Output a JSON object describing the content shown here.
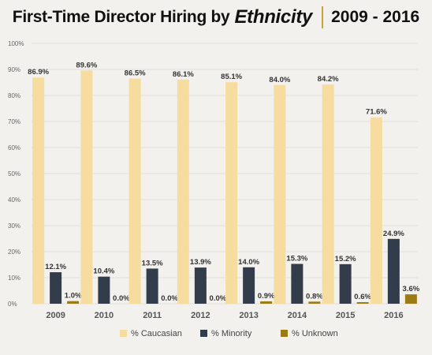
{
  "header": {
    "title_main": "First-Time Director Hiring by",
    "title_emphasis": "Ethnicity",
    "title_years": "2009 - 2016"
  },
  "colors": {
    "caucasian": "#f6dd9f",
    "minority": "#333c4b",
    "unknown": "#9c7a14",
    "grid": "#e2e0da",
    "background": "#f2f1ee"
  },
  "chart_data": {
    "type": "bar",
    "title": "First-Time Director Hiring by Ethnicity 2009 - 2016",
    "categories": [
      "2009",
      "2010",
      "2011",
      "2012",
      "2013",
      "2014",
      "2015",
      "2016"
    ],
    "series": [
      {
        "name": "% Caucasian",
        "values": [
          86.9,
          89.6,
          86.5,
          86.1,
          85.1,
          84.0,
          84.2,
          71.6
        ],
        "labels": [
          "86.9%",
          "89.6%",
          "86.5%",
          "86.1%",
          "85.1%",
          "84.0%",
          "84.2%",
          "71.6%"
        ]
      },
      {
        "name": "% Minority",
        "values": [
          12.1,
          10.4,
          13.5,
          13.9,
          14.0,
          15.3,
          15.2,
          24.9
        ],
        "labels": [
          "12.1%",
          "10.4%",
          "13.5%",
          "13.9%",
          "14.0%",
          "15.3%",
          "15.2%",
          "24.9%"
        ]
      },
      {
        "name": "% Unknown",
        "values": [
          1.0,
          0.0,
          0.0,
          0.0,
          0.9,
          0.8,
          0.6,
          3.6
        ],
        "labels": [
          "1.0%",
          "0.0%",
          "0.0%",
          "0.0%",
          "0.9%",
          "0.8%",
          "0.6%",
          "3.6%"
        ]
      }
    ],
    "yticks": [
      "0%",
      "10%",
      "20%",
      "30%",
      "40%",
      "50%",
      "60%",
      "70%",
      "80%",
      "90%",
      "100%"
    ],
    "ylim": [
      0,
      100
    ],
    "xlabel": "",
    "ylabel": "",
    "grid": true,
    "legend_position": "bottom"
  }
}
